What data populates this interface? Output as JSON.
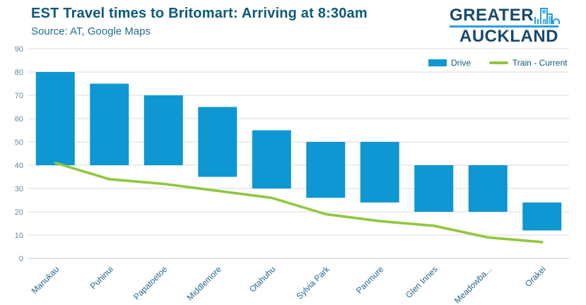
{
  "header": {
    "title": "EST Travel times to Britomart: Arriving at 8:30am",
    "subtitle": "Source: AT, Google Maps"
  },
  "logo": {
    "line1": "GREATER",
    "line2": "AUCKLAND",
    "icon": "city-skyline-icon"
  },
  "legend": [
    {
      "label": "Drive",
      "type": "bar",
      "color": "#0e97d3"
    },
    {
      "label": "Train - Current",
      "type": "line",
      "color": "#90c73e"
    }
  ],
  "colors": {
    "bar_blue": "#0e97d3",
    "line_green": "#90c73e",
    "grid": "#d9d9d9",
    "axis_line": "#c3c7c9",
    "tick_label": "#64899e",
    "category_label": "#21688c",
    "title": "#0d5a78",
    "subtitle": "#236f90",
    "logo_navy": "#18496e",
    "logo_blue": "#2b9fe0"
  },
  "chart_data": {
    "type": "bar",
    "title": "EST Travel times to Britomart: Arriving at 8:30am",
    "subtitle": "Source: AT, Google Maps",
    "categories": [
      "Manukau",
      "Puhinui",
      "Papatoetoe",
      "Middlemore",
      "Otahuhu",
      "Sylvia Park",
      "Panmure",
      "Glen Innes",
      "Meadowba...",
      "Orakei"
    ],
    "series": [
      {
        "name": "Drive",
        "type": "column-range",
        "color": "#0e97d3",
        "ranges": [
          [
            40,
            80
          ],
          [
            40,
            75
          ],
          [
            40,
            70
          ],
          [
            35,
            65
          ],
          [
            30,
            55
          ],
          [
            26,
            50
          ],
          [
            24,
            50
          ],
          [
            20,
            40
          ],
          [
            20,
            40
          ],
          [
            12,
            24
          ]
        ]
      },
      {
        "name": "Train - Current",
        "type": "line",
        "color": "#90c73e",
        "values": [
          41,
          34,
          32,
          29,
          26,
          19,
          16,
          14,
          9,
          7
        ]
      }
    ],
    "y_axis": {
      "min": 0,
      "max": 90,
      "step": 10,
      "ticks": [
        0,
        10,
        20,
        30,
        40,
        50,
        60,
        70,
        80,
        90
      ]
    },
    "xlabel": "",
    "ylabel": "",
    "grid": true,
    "legend_position": "top-right"
  }
}
